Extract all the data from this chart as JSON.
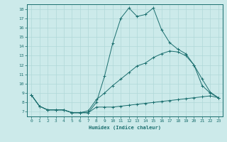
{
  "xlabel": "Humidex (Indice chaleur)",
  "bg_color": "#cceaea",
  "grid_color": "#ddeaea",
  "line_color": "#1a6e6e",
  "xlim": [
    -0.5,
    23.5
  ],
  "ylim": [
    6.5,
    18.5
  ],
  "xticks": [
    0,
    1,
    2,
    3,
    4,
    5,
    6,
    7,
    8,
    9,
    10,
    11,
    12,
    13,
    14,
    15,
    16,
    17,
    18,
    19,
    20,
    21,
    22,
    23
  ],
  "yticks": [
    7,
    8,
    9,
    10,
    11,
    12,
    13,
    14,
    15,
    16,
    17,
    18
  ],
  "line1_x": [
    0,
    1,
    2,
    3,
    4,
    5,
    6,
    7,
    8,
    9,
    10,
    11,
    12,
    13,
    14,
    15,
    16,
    17,
    18,
    19,
    20,
    21,
    22,
    23
  ],
  "line1_y": [
    8.8,
    7.6,
    7.2,
    7.2,
    7.2,
    6.9,
    6.9,
    6.9,
    8.0,
    10.8,
    14.3,
    17.0,
    18.1,
    17.2,
    17.4,
    18.1,
    15.8,
    14.4,
    13.7,
    13.2,
    12.0,
    10.5,
    9.1,
    8.5
  ],
  "line2_x": [
    0,
    1,
    2,
    3,
    4,
    5,
    6,
    7,
    8,
    9,
    10,
    11,
    12,
    13,
    14,
    15,
    16,
    17,
    18,
    19,
    20,
    21,
    22,
    23
  ],
  "line2_y": [
    8.8,
    7.6,
    7.2,
    7.2,
    7.2,
    6.9,
    6.9,
    7.1,
    8.3,
    9.0,
    9.8,
    10.5,
    11.2,
    11.9,
    12.2,
    12.8,
    13.2,
    13.5,
    13.4,
    13.0,
    12.0,
    9.8,
    9.0,
    8.5
  ],
  "line3_x": [
    0,
    1,
    2,
    3,
    4,
    5,
    6,
    7,
    8,
    9,
    10,
    11,
    12,
    13,
    14,
    15,
    16,
    17,
    18,
    19,
    20,
    21,
    22,
    23
  ],
  "line3_y": [
    8.8,
    7.6,
    7.2,
    7.2,
    7.2,
    6.9,
    6.9,
    6.9,
    7.5,
    7.5,
    7.5,
    7.6,
    7.7,
    7.8,
    7.9,
    8.0,
    8.1,
    8.2,
    8.3,
    8.4,
    8.5,
    8.6,
    8.7,
    8.5
  ]
}
